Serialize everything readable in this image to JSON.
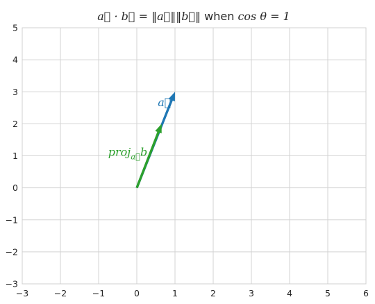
{
  "chart_data": {
    "type": "vector-plot",
    "title": "a⃗ · b⃗ = ‖a⃗‖‖b⃗‖ when cos θ = 1",
    "title_parts": {
      "math_left": "a⃗ · b⃗ = ‖a⃗‖‖b⃗‖",
      "text_when": " when ",
      "math_right": "cos θ = 1"
    },
    "xlim": [
      -3,
      6
    ],
    "ylim": [
      -3,
      5
    ],
    "xticks": [
      -3,
      -2,
      -1,
      0,
      1,
      2,
      3,
      4,
      5,
      6
    ],
    "yticks": [
      -3,
      -2,
      -1,
      0,
      1,
      2,
      3,
      4,
      5
    ],
    "xtick_labels": [
      "−3",
      "−2",
      "−1",
      "0",
      "1",
      "2",
      "3",
      "4",
      "5",
      "6"
    ],
    "ytick_labels": [
      "−3",
      "−2",
      "−1",
      "0",
      "1",
      "2",
      "3",
      "4",
      "5"
    ],
    "grid": true,
    "vectors": [
      {
        "name": "vector-a",
        "label": "a⃗",
        "start": [
          0,
          0
        ],
        "end": [
          1,
          3
        ],
        "color": "#1f77b4",
        "label_anchor": [
          0.55,
          2.55
        ]
      },
      {
        "name": "projection-vector",
        "label": "proj",
        "label_sub": "a⃗",
        "label_tail": "b",
        "start": [
          0,
          0
        ],
        "end": [
          0.65,
          2.0
        ],
        "color": "#2ca02c",
        "label_anchor": [
          -0.75,
          1.0
        ]
      }
    ]
  }
}
